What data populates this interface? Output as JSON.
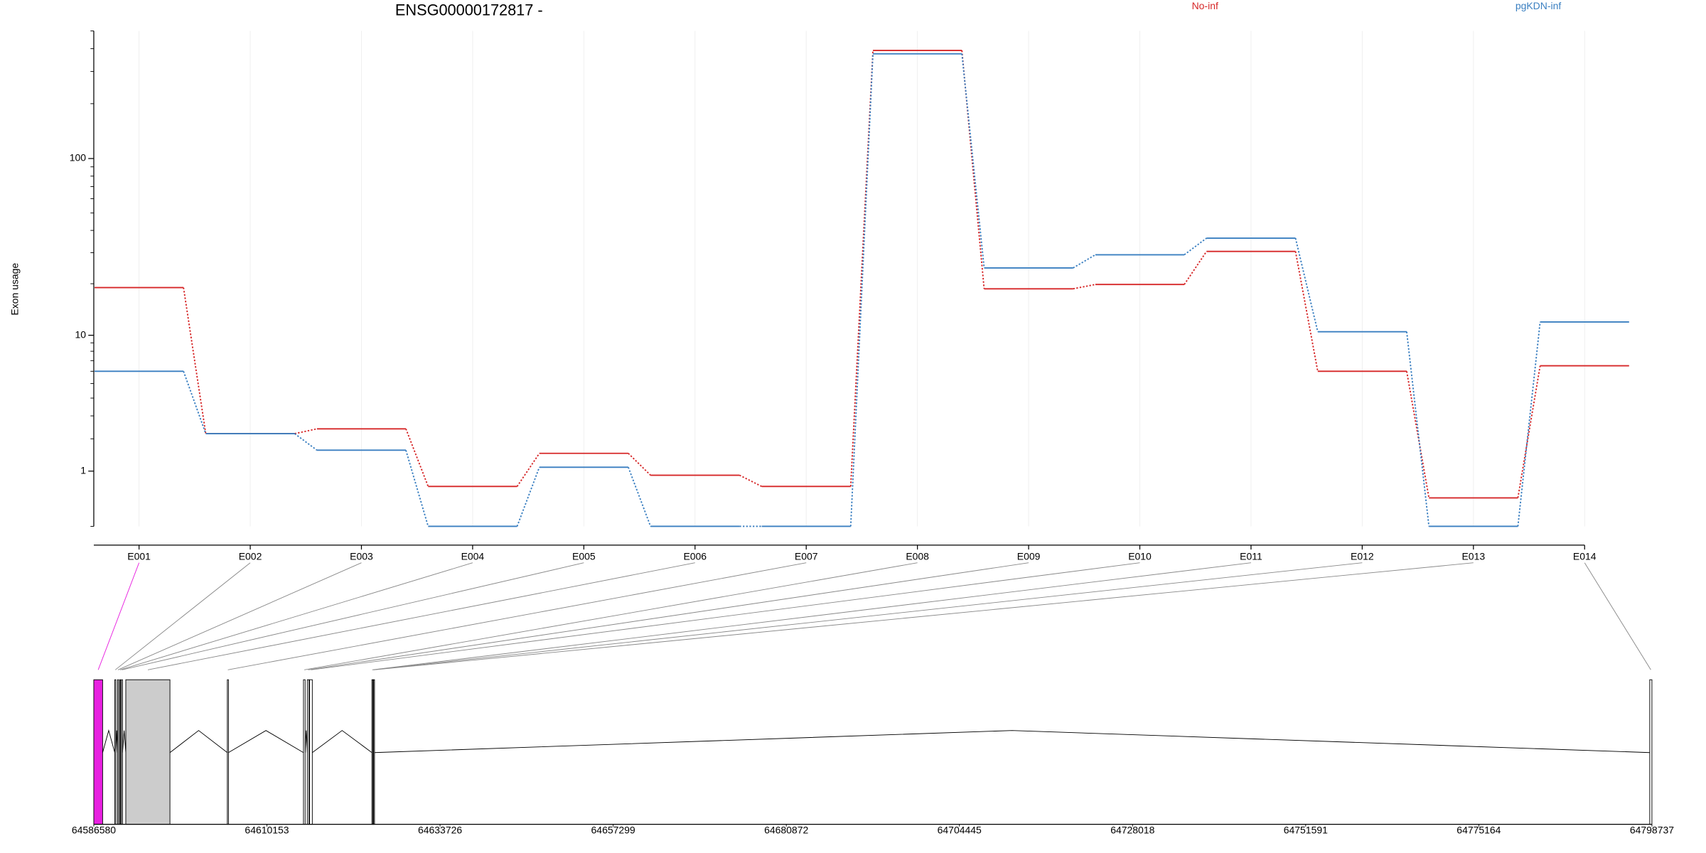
{
  "chart_data": {
    "type": "exon-usage",
    "title": "ENSG00000172817 -",
    "ylabel": "Exon usage",
    "categories": [
      "E001",
      "E002",
      "E003",
      "E004",
      "E005",
      "E006",
      "E007",
      "E008",
      "E009",
      "E010",
      "E011",
      "E012",
      "E013",
      "E014"
    ],
    "series": [
      {
        "name": "No-inf",
        "color": "#d62728",
        "values": [
          19,
          2.2,
          2.4,
          0.65,
          1.5,
          0.9,
          0.65,
          391,
          18.7,
          19.8,
          30.5,
          6,
          0.43,
          6.5
        ]
      },
      {
        "name": "pgKDN-inf",
        "color": "#3a7fc1",
        "values": [
          6,
          2.2,
          1.6,
          0,
          1.1,
          0,
          0,
          375,
          24.6,
          29.2,
          36.2,
          10.5,
          0,
          12
        ]
      }
    ],
    "ylim": [
      0,
      500
    ],
    "yticks": [
      1,
      10,
      100
    ],
    "yminor_ticks": [
      0,
      2,
      3,
      4,
      5,
      6,
      7,
      8,
      9,
      20,
      30,
      40,
      50,
      60,
      70,
      80,
      90,
      200,
      300,
      400,
      500
    ],
    "log_scale": true,
    "grid": true,
    "gene_model": {
      "xlim": [
        64586580,
        64798737
      ],
      "xticks": [
        64586580,
        64610153,
        64633726,
        64657299,
        64680872,
        64704445,
        64728018,
        64751591,
        64775164,
        64798737
      ],
      "exons": [
        [
          64586580,
          64587782
        ],
        [
          64589435,
          64589585
        ],
        [
          64589811,
          64589961
        ],
        [
          64590111,
          64590231
        ],
        [
          64590337,
          64590487
        ],
        [
          64590938,
          64596948
        ],
        [
          64604762,
          64604912
        ],
        [
          64615130,
          64615355
        ],
        [
          64615656,
          64615881
        ],
        [
          64615956,
          64616332
        ],
        [
          64624446,
          64624536
        ],
        [
          64624566,
          64624656
        ],
        [
          64624686,
          64624776
        ],
        [
          64798437,
          64798737
        ]
      ],
      "fills": [
        "#e820e0",
        "#ffffff",
        "#ffffff",
        "#ffffff",
        "#ffffff",
        "#cccccc",
        "#ffffff",
        "#ffffff",
        "#ffffff",
        "#ffffff",
        "#ffffff",
        "#ffffff",
        "#ffffff",
        "#ffffff"
      ]
    }
  }
}
